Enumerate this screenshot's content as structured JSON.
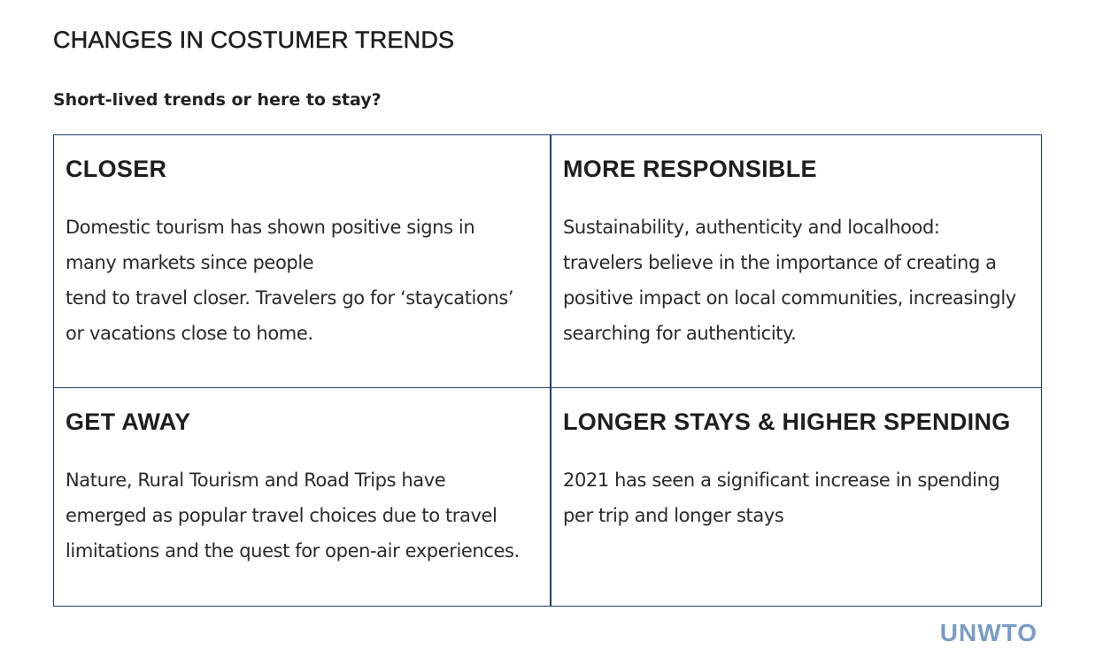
{
  "page": {
    "title": "CHANGES IN COSTUMER TRENDS",
    "subtitle": "Short-lived trends or here to stay?"
  },
  "trends": [
    {
      "heading": "CLOSER",
      "body_lines": [
        "Domestic tourism has shown positive signs in",
        "many markets since people",
        "tend to travel closer. Travelers go for ‘staycations’",
        "or vacations close to home."
      ]
    },
    {
      "heading": "MORE RESPONSIBLE",
      "body_lines": [
        "Sustainability, authenticity and localhood:",
        "travelers believe in the importance of creating a",
        "positive impact on local communities, increasingly",
        "searching for authenticity."
      ]
    },
    {
      "heading": "GET AWAY",
      "body_lines": [
        "Nature, Rural Tourism and Road Trips have",
        "emerged as popular travel choices due to travel",
        "limitations and the quest for open-air experiences."
      ]
    },
    {
      "heading": "LONGER STAYS & HIGHER SPENDING",
      "body_lines": [
        "2021 has seen a significant increase in spending",
        "per trip and longer stays"
      ]
    }
  ],
  "logo": {
    "text": "UNWTO",
    "color": "#7a9cc6"
  },
  "colors": {
    "grid_border": "#1f3f6e",
    "text": "#222222"
  }
}
